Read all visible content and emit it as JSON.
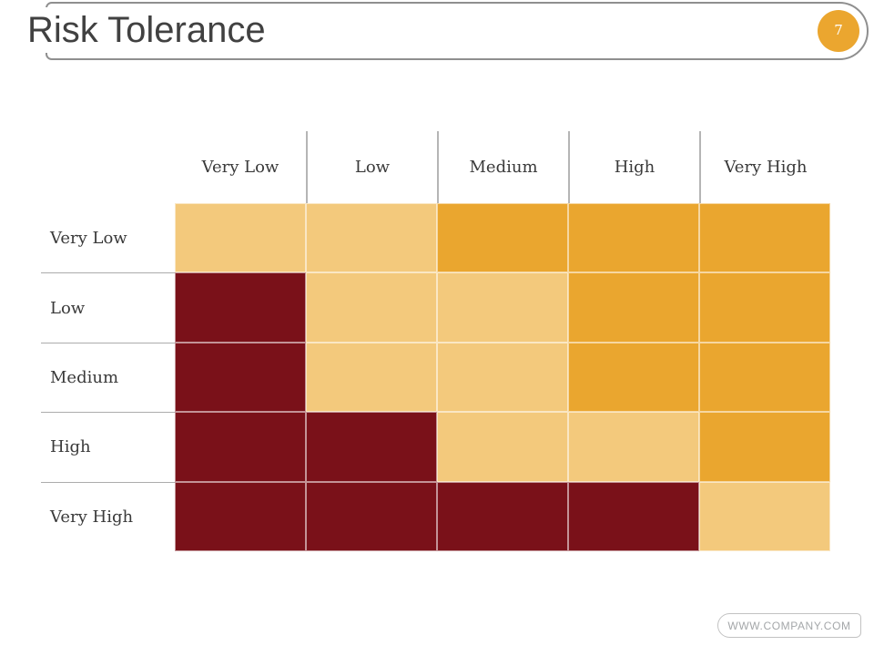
{
  "slide": {
    "title": "Risk Tolerance",
    "page_number": "7",
    "footer": "WWW.COMPANY.COM"
  },
  "chart_data": {
    "type": "heatmap",
    "title": "Risk Tolerance",
    "x_categories": [
      "Very Low",
      "Low",
      "Medium",
      "High",
      "Very High"
    ],
    "y_categories": [
      "Very Low",
      "Low",
      "Medium",
      "High",
      "Very High"
    ],
    "values": [
      [
        "tan",
        "tan",
        "orange",
        "orange",
        "orange"
      ],
      [
        "darkred",
        "tan",
        "tan",
        "orange",
        "orange"
      ],
      [
        "darkred",
        "tan",
        "tan",
        "orange",
        "orange"
      ],
      [
        "darkred",
        "darkred",
        "tan",
        "tan",
        "orange"
      ],
      [
        "darkred",
        "darkred",
        "darkred",
        "darkred",
        "tan"
      ]
    ],
    "color_map": {
      "tan": "#F3C97C",
      "orange": "#EAA62F",
      "darkred": "#7A1119"
    },
    "legend": "none",
    "grid": true,
    "axis_labels_position": {
      "x": "top",
      "y": "left"
    }
  },
  "colors": {
    "accent_orange": "#EBA62F",
    "frame_gray": "#8F8F8F",
    "divider_gray": "#ACACAC",
    "title_text": "#414141",
    "label_text": "#3A3A3A",
    "footer_text": "#A4A7A9"
  }
}
